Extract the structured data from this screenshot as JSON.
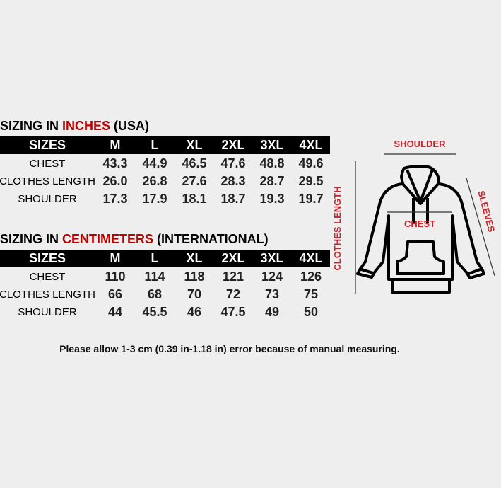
{
  "inches": {
    "title_prefix": "SIZING IN ",
    "title_unit": "INCHES",
    "title_suffix": " (USA)",
    "header": [
      "SIZES",
      "M",
      "L",
      "XL",
      "2XL",
      "3XL",
      "4XL"
    ],
    "rows": [
      {
        "label": "CHEST",
        "values": [
          "43.3",
          "44.9",
          "46.5",
          "47.6",
          "48.8",
          "49.6"
        ]
      },
      {
        "label": "CLOTHES LENGTH",
        "values": [
          "26.0",
          "26.8",
          "27.6",
          "28.3",
          "28.7",
          "29.5"
        ]
      },
      {
        "label": "SHOULDER",
        "values": [
          "17.3",
          "17.9",
          "18.1",
          "18.7",
          "19.3",
          "19.7"
        ]
      }
    ]
  },
  "centimeters": {
    "title_prefix": "SIZING IN ",
    "title_unit": "CENTIMETERS",
    "title_suffix": " (INTERNATIONAL)",
    "header": [
      "SIZES",
      "M",
      "L",
      "XL",
      "2XL",
      "3XL",
      "4XL"
    ],
    "rows": [
      {
        "label": "CHEST",
        "values": [
          "110",
          "114",
          "118",
          "121",
          "124",
          "126"
        ]
      },
      {
        "label": "CLOTHES LENGTH",
        "values": [
          "66",
          "68",
          "70",
          "72",
          "73",
          "75"
        ]
      },
      {
        "label": "SHOULDER",
        "values": [
          "44",
          "45.5",
          "46",
          "47.5",
          "49",
          "50"
        ]
      }
    ]
  },
  "diagram": {
    "shoulder": "SHOULDER",
    "chest": "CHEST",
    "clothes_length": "CLOTHES LENGTH",
    "sleeves": "SLEEVES",
    "label_color": "#d0232a"
  },
  "note": "Please allow 1-3 cm (0.39 in-1.18 in) error because of manual measuring.",
  "accent_color": "#c00000"
}
